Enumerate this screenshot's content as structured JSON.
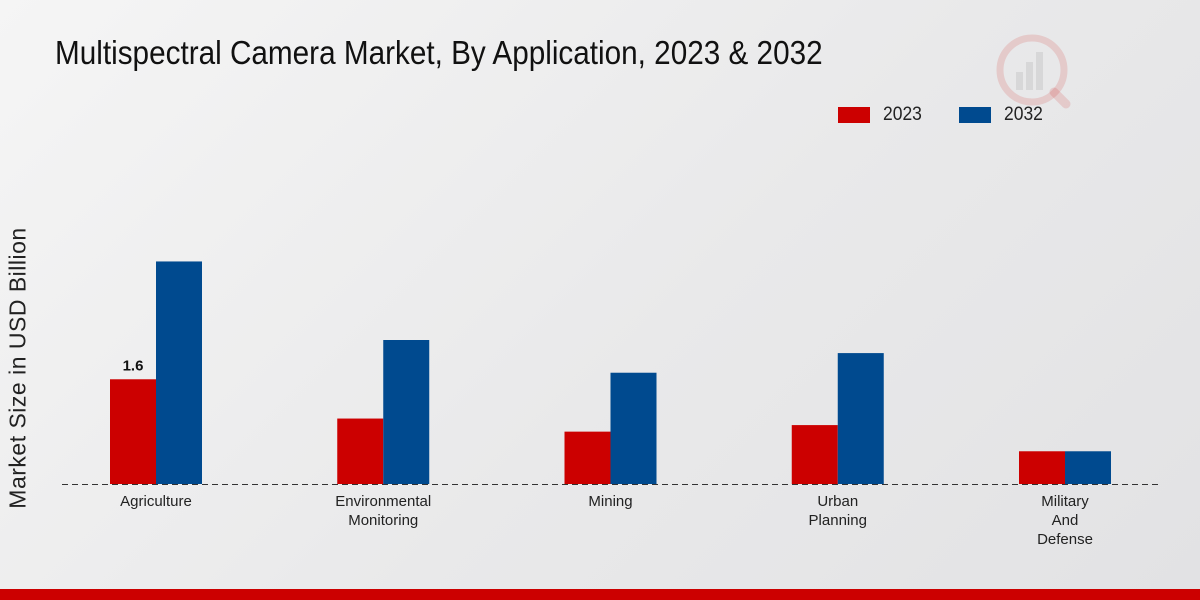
{
  "chart_data": {
    "type": "bar",
    "title": "Multispectral Camera Market, By Application, 2023 & 2032",
    "xlabel": "",
    "ylabel": "Market Size in USD Billion",
    "categories": [
      [
        "Agriculture"
      ],
      [
        "Environmental",
        "Monitoring"
      ],
      [
        "Mining"
      ],
      [
        "Urban",
        "Planning"
      ],
      [
        "Military",
        "And",
        "Defense"
      ]
    ],
    "series": [
      {
        "name": "2023",
        "color": "#cc0000",
        "values": [
          1.6,
          1.0,
          0.8,
          0.9,
          0.5
        ]
      },
      {
        "name": "2032",
        "color": "#004a8f",
        "values": [
          3.4,
          2.2,
          1.7,
          2.0,
          0.5
        ]
      }
    ],
    "data_labels": [
      {
        "series": 0,
        "index": 0,
        "text": "1.6"
      }
    ],
    "ylim": [
      0,
      5.5
    ],
    "grid": false,
    "legend": "top-right"
  },
  "colors": {
    "accent_bar": "#cc0000",
    "watermark": "#cc0000"
  }
}
